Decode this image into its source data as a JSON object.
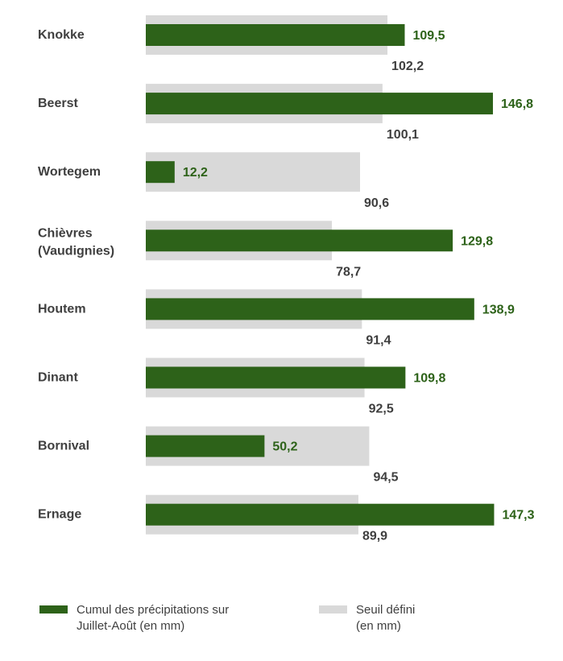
{
  "chart_data": {
    "type": "bar",
    "orientation": "horizontal",
    "title": "",
    "xlabel": "",
    "ylabel": "",
    "xlim": [
      0,
      150
    ],
    "grid": false,
    "legend_position": "bottom",
    "categories": [
      [
        "Knokke"
      ],
      [
        "Beerst"
      ],
      [
        "Wortegem"
      ],
      [
        "Chièvres",
        "(Vaudignies)"
      ],
      [
        "Houtem"
      ],
      [
        "Dinant"
      ],
      [
        "Bornival"
      ],
      [
        "Ernage"
      ]
    ],
    "series": [
      {
        "name": "Cumul des précipitations sur Juillet-Août (en mm)",
        "color": "#2d6219",
        "values": [
          109.5,
          146.8,
          12.2,
          129.8,
          138.9,
          109.8,
          50.2,
          147.3
        ],
        "labels": [
          "109,5",
          "146,8",
          "12,2",
          "129,8",
          "138,9",
          "109,8",
          "50,2",
          "147,3"
        ]
      },
      {
        "name": "Seuil défini (en mm)",
        "color": "#d9d9d9",
        "values": [
          102.2,
          100.1,
          90.6,
          78.7,
          91.4,
          92.5,
          94.5,
          89.9
        ],
        "labels": [
          "102,2",
          "100,1",
          "90,6",
          "78,7",
          "91,4",
          "92,5",
          "94,5",
          "89,9"
        ]
      }
    ]
  },
  "legend": {
    "items": [
      {
        "line1": "Cumul des précipitations sur",
        "line2": "Juillet-Août (en mm)",
        "color": "#2d6219"
      },
      {
        "line1": "Seuil défini",
        "line2": "(en mm)",
        "color": "#d9d9d9"
      }
    ]
  }
}
